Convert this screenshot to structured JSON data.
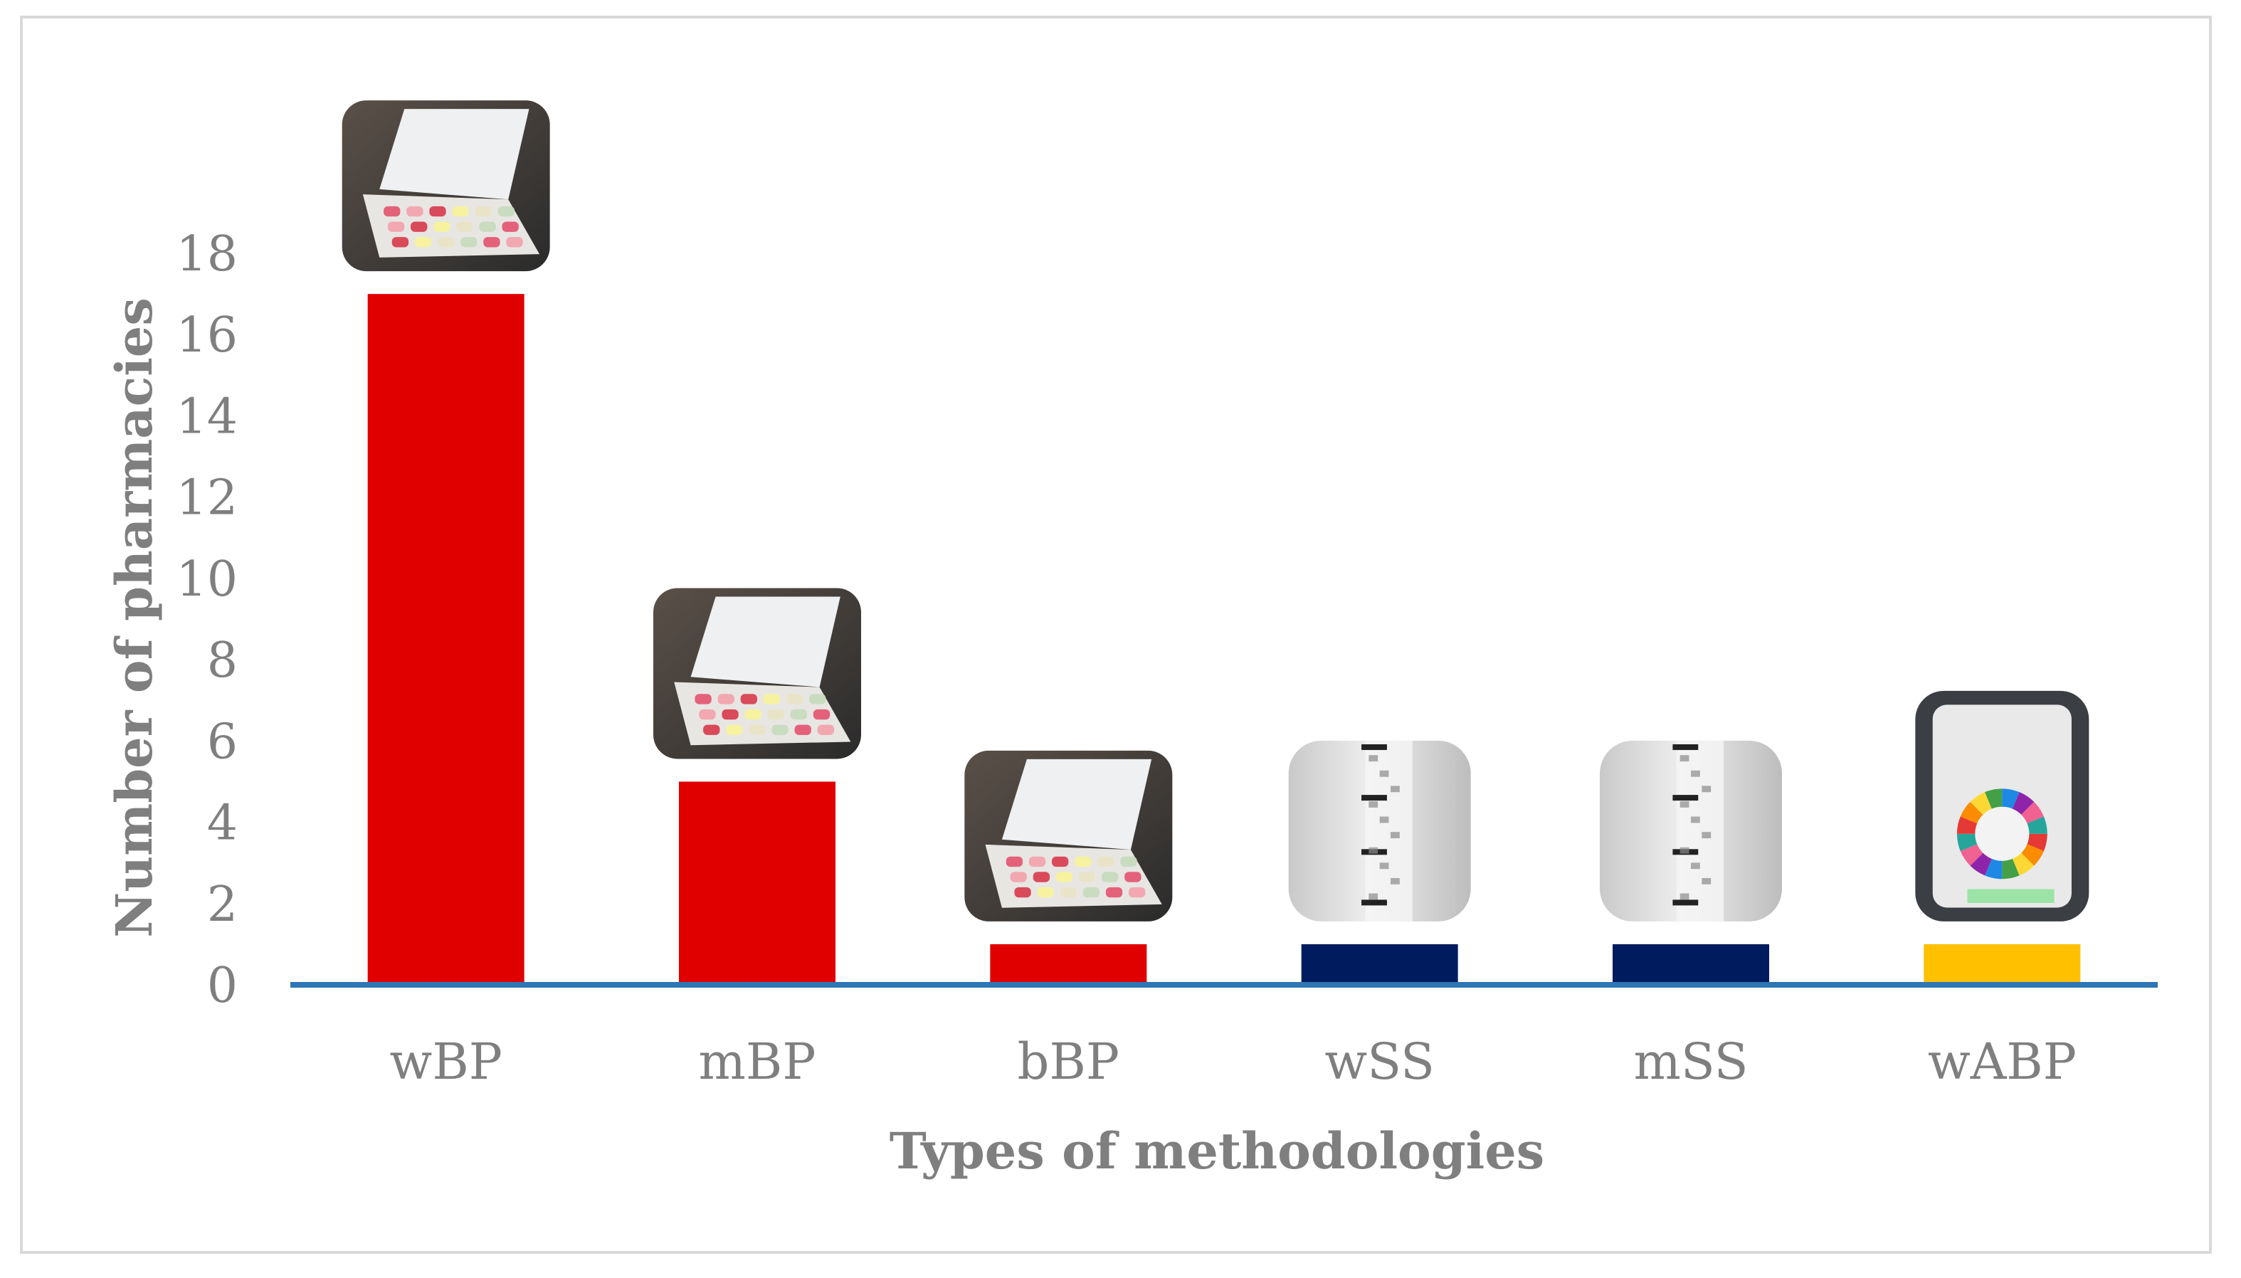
{
  "chart_data": {
    "type": "bar",
    "title": "",
    "xlabel": "Types of methodologies",
    "ylabel": "Number of pharmacies",
    "categories": [
      "wBP",
      "mBP",
      "bBP",
      "wSS",
      "mSS",
      "wABP"
    ],
    "values": [
      17,
      5,
      1,
      1,
      1,
      1
    ],
    "bar_colors": [
      "#e00000",
      "#e00000",
      "#e00000",
      "#001b5e",
      "#001b5e",
      "#ffc000"
    ],
    "bar_pictures": [
      "blister-pack-photo",
      "blister-pack-photo",
      "blister-pack-photo",
      "sachet-strip-photo",
      "sachet-strip-photo",
      "automated-dispenser-photo"
    ],
    "yticks": [
      0,
      2,
      4,
      6,
      8,
      10,
      12,
      14,
      16,
      18
    ],
    "ylim": [
      0,
      18
    ],
    "grid": false,
    "legend": "none",
    "axis_line_color": "#2e75b6",
    "text_color": "#7f7f7f"
  }
}
